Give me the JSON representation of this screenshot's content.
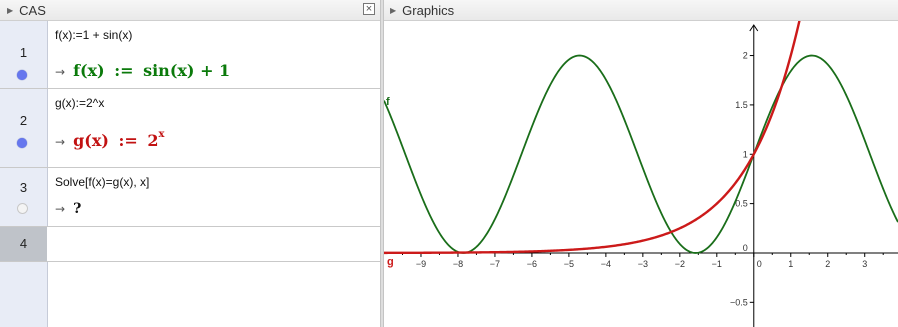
{
  "cas": {
    "title": "CAS",
    "close_symbol": "×",
    "rows": [
      {
        "number": "1",
        "input": "f(x):=1 + sin(x)",
        "output_head": "f(x)",
        "output_assign": ":=",
        "output_body": "sin(x) + 1",
        "output_color": "#0b7a0b",
        "visible": true
      },
      {
        "number": "2",
        "input": "g(x):=2^x",
        "output_head": "g(x)",
        "output_assign": ":=",
        "output_base": "2",
        "output_exp": "x",
        "output_color": "#c21212",
        "visible": true
      },
      {
        "number": "3",
        "input": "Solve[f(x)=g(x), x]",
        "output_body": "?",
        "visible": false
      },
      {
        "number": "4",
        "input": ""
      }
    ],
    "arrow": "→"
  },
  "graphics": {
    "title": "Graphics",
    "func_f_label": "f",
    "func_g_label": "g",
    "f_color": "#1a6e1a",
    "g_color": "#cc1a1a"
  },
  "chart_data": {
    "type": "line",
    "x_tick_labels": [
      "−9",
      "−8",
      "−7",
      "−6",
      "−5",
      "−4",
      "−3",
      "−2",
      "−1",
      "0",
      "1",
      "2",
      "3"
    ],
    "y_tick_labels": [
      "−0.5",
      "0",
      "0.5",
      "1",
      "1.5",
      "2"
    ],
    "xlim": [
      -10,
      3.9
    ],
    "ylim": [
      -0.75,
      2.35
    ],
    "grid": false,
    "series": [
      {
        "name": "f",
        "expression": "1 + sin(x)",
        "color": "#1a6e1a"
      },
      {
        "name": "g",
        "expression": "2^x",
        "color": "#cc1a1a"
      }
    ]
  }
}
